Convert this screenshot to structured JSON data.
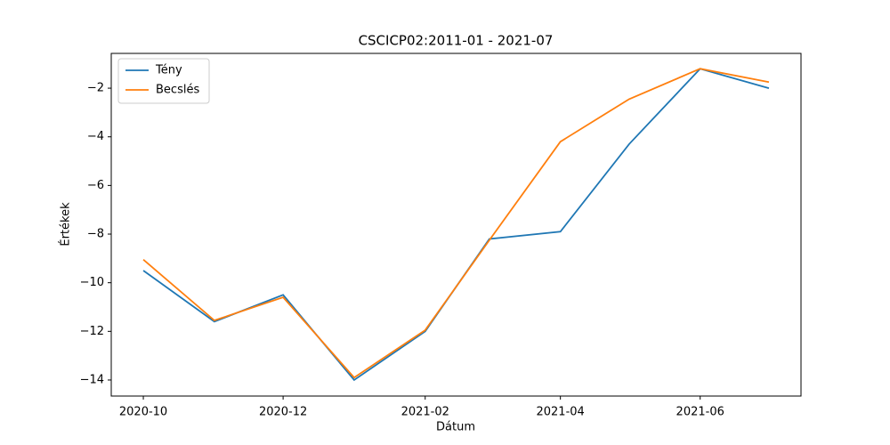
{
  "chart_data": {
    "type": "line",
    "title": "CSCICP02:2011-01 - 2021-07",
    "xlabel": "Dátum",
    "ylabel": "Értékek",
    "x": [
      "2020-10",
      "2020-11",
      "2020-12",
      "2021-01",
      "2021-02",
      "2021-03",
      "2021-04",
      "2021-05",
      "2021-06",
      "2021-07"
    ],
    "series": [
      {
        "name": "Tény",
        "color": "#1f77b4",
        "values": [
          -9.5,
          -11.6,
          -10.5,
          -14.0,
          -12.0,
          -8.2,
          -7.9,
          -4.3,
          -1.2,
          -2.0
        ]
      },
      {
        "name": "Becslés",
        "color": "#ff7f0e",
        "values": [
          -9.05,
          -11.55,
          -10.6,
          -13.9,
          -11.95,
          -8.25,
          -4.2,
          -2.45,
          -1.2,
          -1.75
        ]
      }
    ],
    "xlim": [
      "2020-09-17",
      "2021-07-15"
    ],
    "xticks": [
      "2020-10",
      "2020-12",
      "2021-02",
      "2021-04",
      "2021-06"
    ],
    "ylim": [
      -14.66,
      -0.57
    ],
    "yticks": [
      {
        "value": -14,
        "label": "−14"
      },
      {
        "value": -12,
        "label": "−12"
      },
      {
        "value": -10,
        "label": "−10"
      },
      {
        "value": -8,
        "label": "−8"
      },
      {
        "value": -6,
        "label": "−6"
      },
      {
        "value": -4,
        "label": "−4"
      },
      {
        "value": -2,
        "label": "−2"
      }
    ],
    "grid": false,
    "legend": "upper left"
  }
}
